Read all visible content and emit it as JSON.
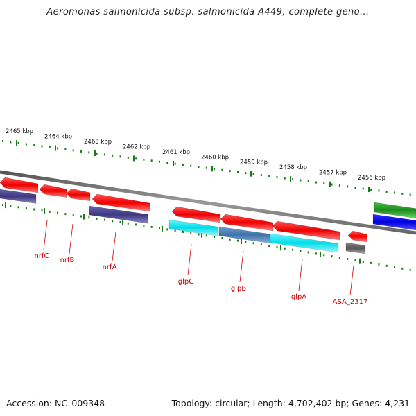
{
  "title": "Aeromonas salmonicida subsp. salmonicida A449, complete geno...",
  "footer": {
    "accession": "Accession: NC_009348",
    "summary": "Topology: circular; Length: 4,702,402 bp; Genes: 4,231"
  },
  "colors": {
    "backbone": "#8a8a8a",
    "tick": "#1a7a1a",
    "label_line": "#cc0000",
    "cds_red": "#ee0000",
    "purple": "#4a4590",
    "cyan": "#00e5f0",
    "steelblue": "#4a7fb5",
    "gray": "#666666",
    "green": "#2a9a2a",
    "blue": "#0000ee"
  },
  "ticks": [
    {
      "label": "2465 kbp"
    },
    {
      "label": "2464 kbp"
    },
    {
      "label": "2463 kbp"
    },
    {
      "label": "2462 kbp"
    },
    {
      "label": "2461 kbp"
    },
    {
      "label": "2460 kbp"
    },
    {
      "label": "2459 kbp"
    },
    {
      "label": "2458 kbp"
    },
    {
      "label": "2457 kbp"
    },
    {
      "label": "2456 kbp"
    }
  ],
  "genes": [
    {
      "name": "nrfC"
    },
    {
      "name": "nrfB"
    },
    {
      "name": "nrfA"
    },
    {
      "name": "glpC"
    },
    {
      "name": "glpB"
    },
    {
      "name": "glpA"
    },
    {
      "name": "ASA_2317"
    }
  ]
}
